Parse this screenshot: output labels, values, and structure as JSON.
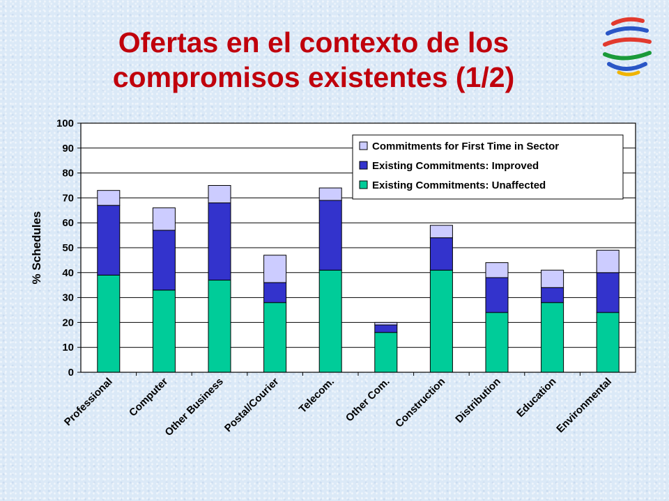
{
  "slide": {
    "title_line1": "Ofertas en el contexto de los",
    "title_line2": "compromisos existentes (1/2)",
    "logo_icon": "wto-logo-icon"
  },
  "chart_data": {
    "type": "bar",
    "stacked": true,
    "categories": [
      "Professional",
      "Computer",
      "Other Business",
      "Postal/Courier",
      "Telecom.",
      "Other Com.",
      "Construction",
      "Distribution",
      "Education",
      "Environmental"
    ],
    "series": [
      {
        "name": "Existing Commitments: Unaffected",
        "color": "#00cc99",
        "values": [
          39,
          33,
          37,
          28,
          41,
          16,
          41,
          24,
          28,
          24
        ]
      },
      {
        "name": "Existing Commitments: Improved",
        "color": "#3333cc",
        "values": [
          28,
          24,
          31,
          8,
          28,
          3,
          13,
          14,
          6,
          16
        ]
      },
      {
        "name": "Commitments for First Time in Sector",
        "color": "#ccccff",
        "values": [
          6,
          9,
          7,
          11,
          5,
          1,
          5,
          6,
          7,
          9
        ]
      }
    ],
    "legend_order": [
      "Commitments for First Time in Sector",
      "Existing Commitments: Improved",
      "Existing Commitments: Unaffected"
    ],
    "ylabel": "% Schedules",
    "xlabel": "",
    "ylim": [
      0,
      100
    ],
    "yticks": [
      "0",
      "10",
      "20",
      "30",
      "40",
      "50",
      "60",
      "70",
      "80",
      "90",
      "100"
    ],
    "grid": true,
    "legend_position": "top-right"
  }
}
